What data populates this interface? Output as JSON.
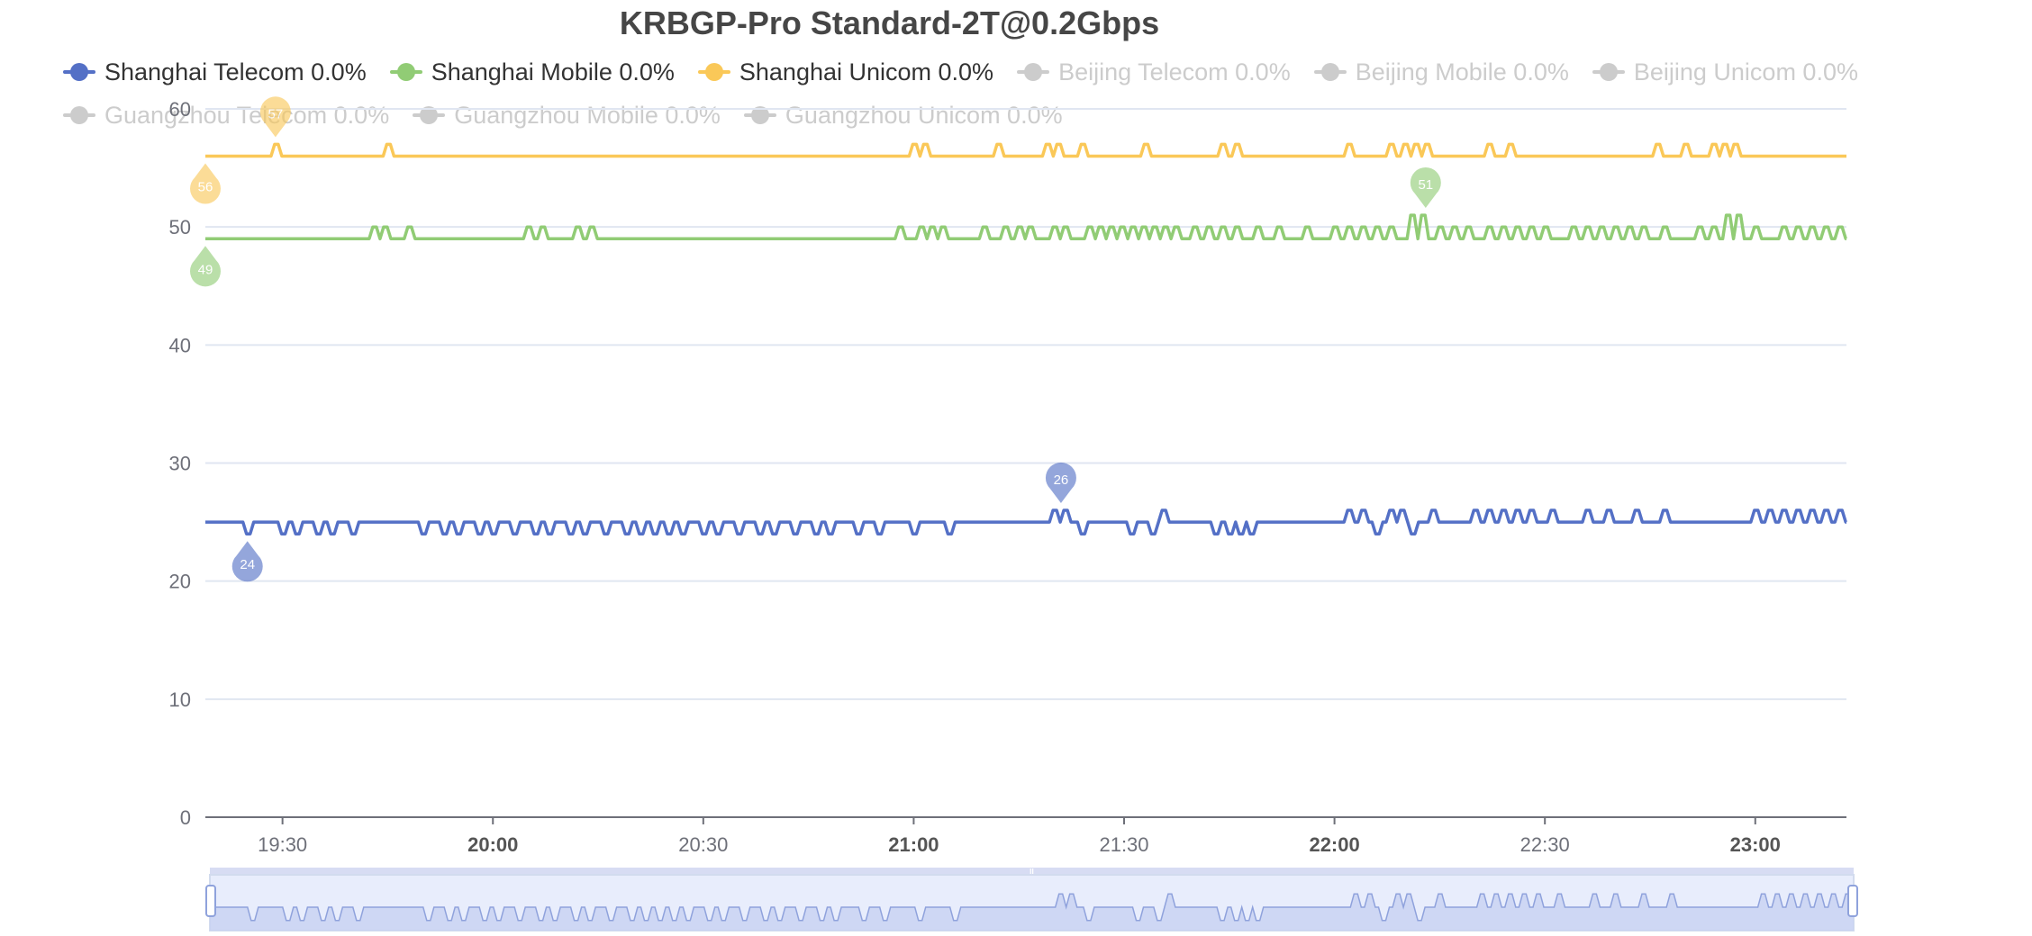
{
  "chart_data": {
    "type": "line",
    "title": "KRBGP-Pro Standard-2T@0.2Gbps",
    "ylim": [
      0,
      60
    ],
    "yticks": [
      0,
      10,
      20,
      30,
      40,
      50,
      60
    ],
    "xlim": [
      "19:19",
      "23:13"
    ],
    "xticks": [
      {
        "label": "19:30",
        "t": "19:30",
        "bold": false
      },
      {
        "label": "20:00",
        "t": "20:00",
        "bold": true
      },
      {
        "label": "20:30",
        "t": "20:30",
        "bold": false
      },
      {
        "label": "21:00",
        "t": "21:00",
        "bold": true
      },
      {
        "label": "21:30",
        "t": "21:30",
        "bold": false
      },
      {
        "label": "22:00",
        "t": "22:00",
        "bold": true
      },
      {
        "label": "22:30",
        "t": "22:30",
        "bold": false
      },
      {
        "label": "23:00",
        "t": "23:00",
        "bold": true
      }
    ],
    "grid": true,
    "legend_position": "top",
    "series": [
      {
        "name": "Shanghai Telecom 0.0%",
        "color": "#5470c6",
        "visible": true,
        "baseline": 25,
        "events": [
          [
            "19:25",
            24
          ],
          [
            "19:30",
            24
          ],
          [
            "19:32",
            24
          ],
          [
            "19:35",
            24
          ],
          [
            "19:37",
            24
          ],
          [
            "19:40",
            24
          ],
          [
            "19:50",
            24
          ],
          [
            "19:53",
            24
          ],
          [
            "19:55",
            24
          ],
          [
            "19:58",
            24
          ],
          [
            "20:00",
            24
          ],
          [
            "20:03",
            24
          ],
          [
            "20:06",
            24
          ],
          [
            "20:08",
            24
          ],
          [
            "20:11",
            24
          ],
          [
            "20:13",
            24
          ],
          [
            "20:16",
            24
          ],
          [
            "20:19",
            24
          ],
          [
            "20:21",
            24
          ],
          [
            "20:23",
            24
          ],
          [
            "20:25",
            24
          ],
          [
            "20:27",
            24
          ],
          [
            "20:30",
            24
          ],
          [
            "20:32",
            24
          ],
          [
            "20:35",
            24
          ],
          [
            "20:38",
            24
          ],
          [
            "20:40",
            24
          ],
          [
            "20:43",
            24
          ],
          [
            "20:46",
            24
          ],
          [
            "20:48",
            24
          ],
          [
            "20:52",
            24
          ],
          [
            "20:55",
            24
          ],
          [
            "21:00",
            24
          ],
          [
            "21:05",
            24
          ],
          [
            "21:20",
            26
          ],
          [
            "21:21",
            26
          ],
          [
            "21:24",
            24
          ],
          [
            "21:31",
            24
          ],
          [
            "21:34",
            24
          ],
          [
            "21:35",
            26
          ],
          [
            "21:43",
            24
          ],
          [
            "21:45",
            24
          ],
          [
            "21:46",
            24
          ],
          [
            "21:48",
            24
          ],
          [
            "22:02",
            26
          ],
          [
            "22:04",
            26
          ],
          [
            "22:06",
            24
          ],
          [
            "22:08",
            26
          ],
          [
            "22:09",
            26
          ],
          [
            "22:11",
            24
          ],
          [
            "22:14",
            26
          ],
          [
            "22:20",
            26
          ],
          [
            "22:22",
            26
          ],
          [
            "22:24",
            26
          ],
          [
            "22:26",
            26
          ],
          [
            "22:28",
            26
          ],
          [
            "22:31",
            26
          ],
          [
            "22:36",
            26
          ],
          [
            "22:39",
            26
          ],
          [
            "22:43",
            26
          ],
          [
            "22:47",
            26
          ],
          [
            "23:00",
            26
          ],
          [
            "23:02",
            26
          ],
          [
            "23:04",
            26
          ],
          [
            "23:06",
            26
          ],
          [
            "23:08",
            26
          ],
          [
            "23:10",
            26
          ],
          [
            "23:12",
            26
          ]
        ],
        "pins": [
          {
            "t": "19:25",
            "v": 24,
            "label": "24",
            "dir": "up"
          },
          {
            "t": "21:21",
            "v": 26,
            "label": "26",
            "dir": "down"
          }
        ]
      },
      {
        "name": "Shanghai Mobile 0.0%",
        "color": "#91cc75",
        "visible": true,
        "baseline": 49,
        "events": [
          [
            "19:43",
            50
          ],
          [
            "19:44",
            50
          ],
          [
            "19:48",
            50
          ],
          [
            "20:05",
            50
          ],
          [
            "20:07",
            50
          ],
          [
            "20:12",
            50
          ],
          [
            "20:14",
            50
          ],
          [
            "20:58",
            50
          ],
          [
            "21:01",
            50
          ],
          [
            "21:02",
            50
          ],
          [
            "21:03",
            50
          ],
          [
            "21:10",
            50
          ],
          [
            "21:13",
            50
          ],
          [
            "21:15",
            50
          ],
          [
            "21:16",
            50
          ],
          [
            "21:20",
            50
          ],
          [
            "21:21",
            50
          ],
          [
            "21:25",
            50
          ],
          [
            "21:26",
            50
          ],
          [
            "21:27",
            50
          ],
          [
            "21:29",
            50
          ],
          [
            "21:30",
            50
          ],
          [
            "21:32",
            50
          ],
          [
            "21:34",
            50
          ],
          [
            "21:35",
            50
          ],
          [
            "21:37",
            50
          ],
          [
            "21:40",
            50
          ],
          [
            "21:42",
            50
          ],
          [
            "21:44",
            50
          ],
          [
            "21:46",
            50
          ],
          [
            "21:49",
            50
          ],
          [
            "21:52",
            50
          ],
          [
            "21:56",
            50
          ],
          [
            "22:00",
            50
          ],
          [
            "22:02",
            50
          ],
          [
            "22:04",
            50
          ],
          [
            "22:06",
            50
          ],
          [
            "22:08",
            50
          ],
          [
            "22:11",
            51
          ],
          [
            "22:12",
            51
          ],
          [
            "22:15",
            50
          ],
          [
            "22:17",
            50
          ],
          [
            "22:19",
            50
          ],
          [
            "22:22",
            50
          ],
          [
            "22:24",
            50
          ],
          [
            "22:26",
            50
          ],
          [
            "22:28",
            50
          ],
          [
            "22:30",
            50
          ],
          [
            "22:34",
            50
          ],
          [
            "22:36",
            50
          ],
          [
            "22:38",
            50
          ],
          [
            "22:40",
            50
          ],
          [
            "22:42",
            50
          ],
          [
            "22:44",
            50
          ],
          [
            "22:47",
            50
          ],
          [
            "22:52",
            50
          ],
          [
            "22:54",
            50
          ],
          [
            "22:56",
            51
          ],
          [
            "22:57",
            51
          ],
          [
            "23:00",
            50
          ],
          [
            "23:04",
            50
          ],
          [
            "23:06",
            50
          ],
          [
            "23:08",
            50
          ],
          [
            "23:10",
            50
          ],
          [
            "23:12",
            50
          ]
        ],
        "pins": [
          {
            "t": "19:19",
            "v": 49,
            "label": "49",
            "dir": "up"
          },
          {
            "t": "22:13",
            "v": 51,
            "label": "51",
            "dir": "down"
          }
        ]
      },
      {
        "name": "Shanghai Unicom 0.0%",
        "color": "#fac858",
        "visible": true,
        "baseline": 56,
        "events": [
          [
            "19:29",
            57
          ],
          [
            "19:45",
            57
          ],
          [
            "21:00",
            57
          ],
          [
            "21:01",
            57
          ],
          [
            "21:12",
            57
          ],
          [
            "21:19",
            57
          ],
          [
            "21:20",
            57
          ],
          [
            "21:24",
            57
          ],
          [
            "21:33",
            57
          ],
          [
            "21:44",
            57
          ],
          [
            "21:46",
            57
          ],
          [
            "22:02",
            57
          ],
          [
            "22:08",
            57
          ],
          [
            "22:10",
            57
          ],
          [
            "22:11",
            57
          ],
          [
            "22:13",
            57
          ],
          [
            "22:22",
            57
          ],
          [
            "22:25",
            57
          ],
          [
            "22:46",
            57
          ],
          [
            "22:50",
            57
          ],
          [
            "22:54",
            57
          ],
          [
            "22:55",
            57
          ],
          [
            "22:56",
            57
          ]
        ],
        "pins": [
          {
            "t": "19:19",
            "v": 56,
            "label": "56",
            "dir": "up"
          },
          {
            "t": "19:29",
            "v": 57,
            "label": "57",
            "dir": "down"
          }
        ]
      },
      {
        "name": "Beijing Telecom 0.0%",
        "color": "#cccccc",
        "visible": false
      },
      {
        "name": "Beijing Mobile 0.0%",
        "color": "#cccccc",
        "visible": false
      },
      {
        "name": "Beijing Unicom 0.0%",
        "color": "#cccccc",
        "visible": false
      },
      {
        "name": "Guangzhou Telecom 0.0%",
        "color": "#cccccc",
        "visible": false
      },
      {
        "name": "Guangzhou Mobile 0.0%",
        "color": "#cccccc",
        "visible": false
      },
      {
        "name": "Guangzhou Unicom 0.0%",
        "color": "#cccccc",
        "visible": false
      }
    ],
    "datazoom": {
      "start_percent": 0,
      "end_percent": 100,
      "preview_series": "Shanghai Telecom 0.0%"
    }
  }
}
